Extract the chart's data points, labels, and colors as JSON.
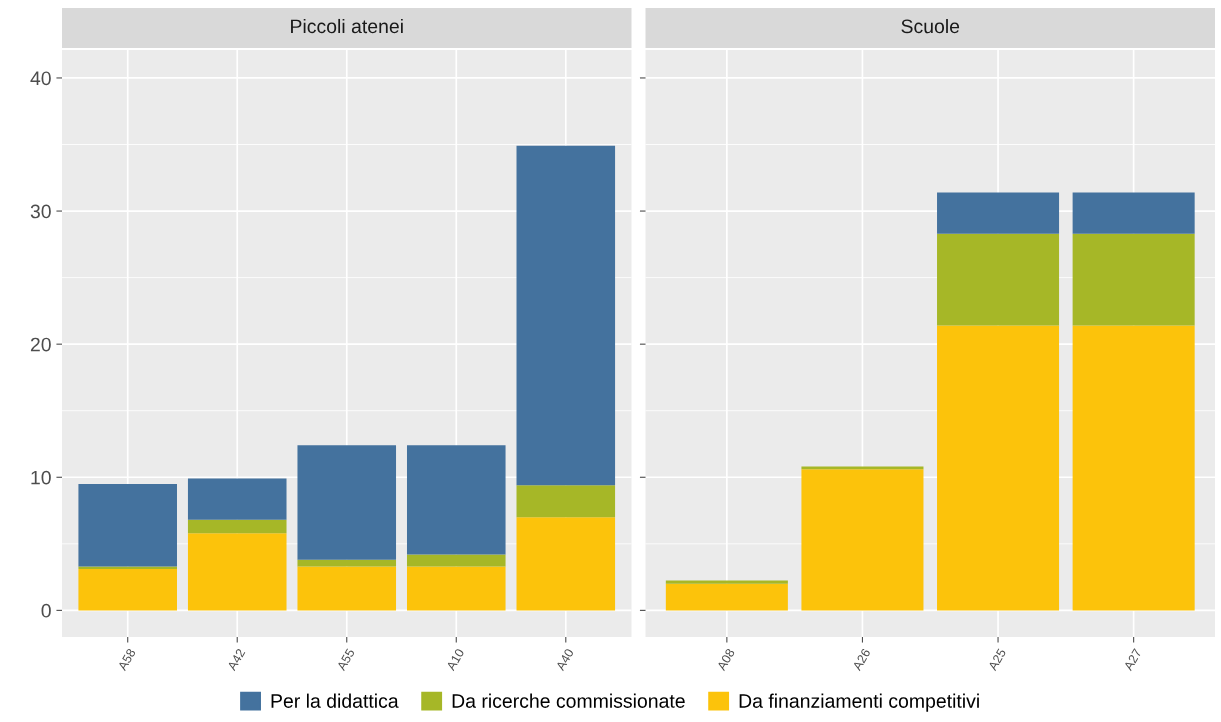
{
  "chart_data": [
    {
      "type": "bar",
      "title": "Piccoli atenei",
      "categories": [
        "A58",
        "A42",
        "A55",
        "A10",
        "A40"
      ],
      "stacked": true,
      "ylim": [
        -2,
        42.1
      ],
      "yticks": [
        0,
        10,
        20,
        30,
        40
      ],
      "grid": true,
      "legend": "bottom",
      "series": [
        {
          "name": "Da finanziamenti competitivi",
          "color": "#fcc30b",
          "values": [
            3.1,
            5.8,
            3.3,
            3.3,
            7.0
          ]
        },
        {
          "name": "Da ricerche commissionate",
          "color": "#a6b727",
          "values": [
            0.2,
            1.0,
            0.5,
            0.9,
            2.4
          ]
        },
        {
          "name": "Per la didattica",
          "color": "#44729e",
          "values": [
            6.2,
            3.1,
            8.6,
            8.2,
            25.5
          ]
        }
      ]
    },
    {
      "type": "bar",
      "title": "Scuole",
      "categories": [
        "A08",
        "A26",
        "A25",
        "A27"
      ],
      "stacked": true,
      "ylim": [
        -2,
        42.1
      ],
      "yticks": [
        0,
        10,
        20,
        30,
        40
      ],
      "grid": true,
      "tick_labels": "x",
      "series": [
        {
          "color": "#fcc30b",
          "values": [
            2.0,
            10.6,
            21.4,
            21.4
          ]
        },
        {
          "color": "#a6b727",
          "values": [
            0.25,
            0.2,
            6.9,
            6.9
          ]
        },
        {
          "color": "#44729e",
          "values": [
            null,
            0,
            3.1,
            3.1
          ]
        }
      ]
    }
  ]
}
